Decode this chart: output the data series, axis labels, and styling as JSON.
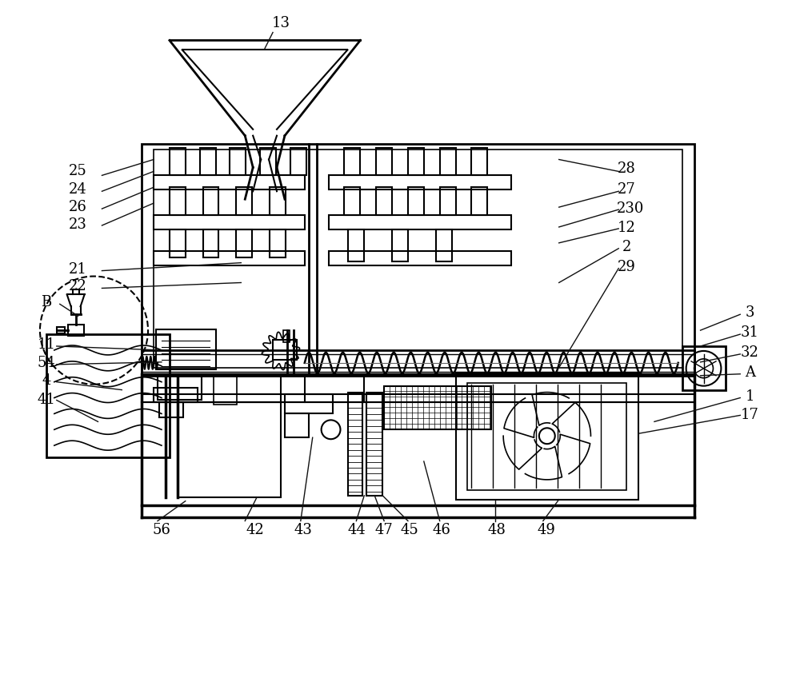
{
  "bg_color": "#ffffff",
  "line_color": "#000000",
  "fig_width": 10.0,
  "fig_height": 8.58
}
